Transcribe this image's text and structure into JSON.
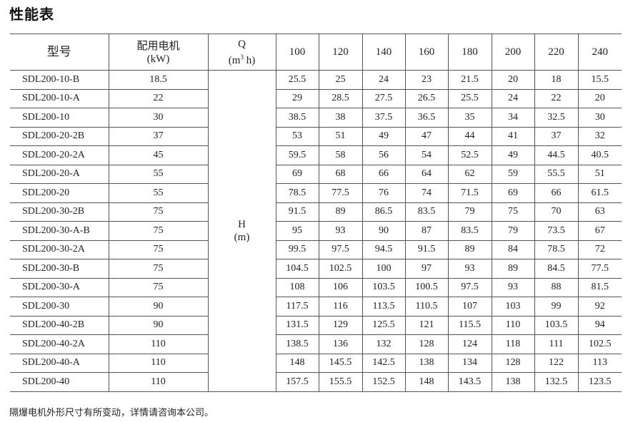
{
  "title": "性能表",
  "table": {
    "headers": {
      "model": "型号",
      "motor_label": "配用电机",
      "motor_unit": "(kW)",
      "q_label": "Q",
      "q_unit_pre": "(m",
      "q_unit_sup": "3",
      "q_unit_post": " h)",
      "flows": [
        "100",
        "120",
        "140",
        "160",
        "180",
        "200",
        "220",
        "240"
      ]
    },
    "h_label": "H",
    "h_unit": "(m)",
    "rows": [
      {
        "model": "SDL200-10-B",
        "motor": "18.5",
        "heads": [
          "25.5",
          "25",
          "24",
          "23",
          "21.5",
          "20",
          "18",
          "15.5"
        ]
      },
      {
        "model": "SDL200-10-A",
        "motor": "22",
        "heads": [
          "29",
          "28.5",
          "27.5",
          "26.5",
          "25.5",
          "24",
          "22",
          "20"
        ]
      },
      {
        "model": "SDL200-10",
        "motor": "30",
        "heads": [
          "38.5",
          "38",
          "37.5",
          "36.5",
          "35",
          "34",
          "32.5",
          "30"
        ]
      },
      {
        "model": "SDL200-20-2B",
        "motor": "37",
        "heads": [
          "53",
          "51",
          "49",
          "47",
          "44",
          "41",
          "37",
          "32"
        ]
      },
      {
        "model": "SDL200-20-2A",
        "motor": "45",
        "heads": [
          "59.5",
          "58",
          "56",
          "54",
          "52.5",
          "49",
          "44.5",
          "40.5"
        ]
      },
      {
        "model": "SDL200-20-A",
        "motor": "55",
        "heads": [
          "69",
          "68",
          "66",
          "64",
          "62",
          "59",
          "55.5",
          "51"
        ]
      },
      {
        "model": "SDL200-20",
        "motor": "55",
        "heads": [
          "78.5",
          "77.5",
          "76",
          "74",
          "71.5",
          "69",
          "66",
          "61.5"
        ]
      },
      {
        "model": "SDL200-30-2B",
        "motor": "75",
        "heads": [
          "91.5",
          "89",
          "86.5",
          "83.5",
          "79",
          "75",
          "70",
          "63"
        ]
      },
      {
        "model": "SDL200-30-A-B",
        "motor": "75",
        "heads": [
          "95",
          "93",
          "90",
          "87",
          "83.5",
          "79",
          "73.5",
          "67"
        ]
      },
      {
        "model": "SDL200-30-2A",
        "motor": "75",
        "heads": [
          "99.5",
          "97.5",
          "94.5",
          "91.5",
          "89",
          "84",
          "78.5",
          "72"
        ]
      },
      {
        "model": "SDL200-30-B",
        "motor": "75",
        "heads": [
          "104.5",
          "102.5",
          "100",
          "97",
          "93",
          "89",
          "84.5",
          "77.5"
        ]
      },
      {
        "model": "SDL200-30-A",
        "motor": "75",
        "heads": [
          "108",
          "106",
          "103.5",
          "100.5",
          "97.5",
          "93",
          "88",
          "81.5"
        ]
      },
      {
        "model": "SDL200-30",
        "motor": "90",
        "heads": [
          "117.5",
          "116",
          "113.5",
          "110.5",
          "107",
          "103",
          "99",
          "92"
        ]
      },
      {
        "model": "SDL200-40-2B",
        "motor": "90",
        "heads": [
          "131.5",
          "129",
          "125.5",
          "121",
          "115.5",
          "110",
          "103.5",
          "94"
        ]
      },
      {
        "model": "SDL200-40-2A",
        "motor": "110",
        "heads": [
          "138.5",
          "136",
          "132",
          "128",
          "124",
          "118",
          "111",
          "102.5"
        ]
      },
      {
        "model": "SDL200-40-A",
        "motor": "110",
        "heads": [
          "148",
          "145.5",
          "142.5",
          "138",
          "134",
          "128",
          "122",
          "113"
        ]
      },
      {
        "model": "SDL200-40",
        "motor": "110",
        "heads": [
          "157.5",
          "155.5",
          "152.5",
          "148",
          "143.5",
          "138",
          "132.5",
          "123.5"
        ]
      }
    ]
  },
  "footnote": "隔爆电机外形尺寸有所变动，详情请咨询本公司。"
}
